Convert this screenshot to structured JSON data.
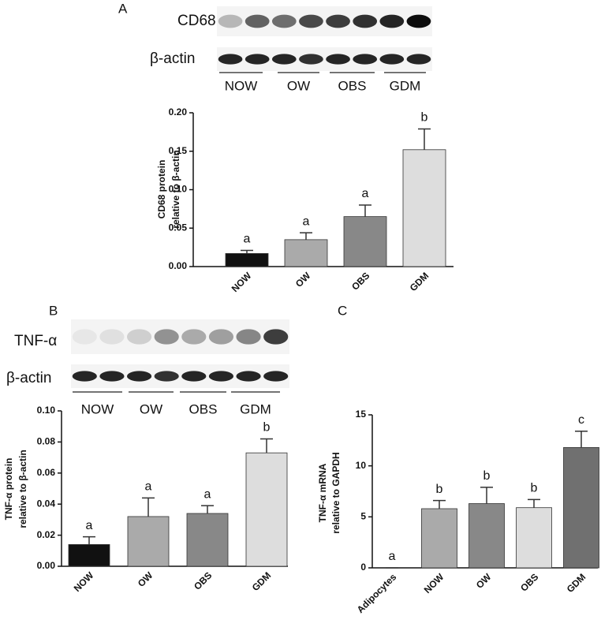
{
  "chart_data": [
    {
      "type": "bar",
      "panel": "A",
      "blot_labels": [
        "CD68",
        "β-actin"
      ],
      "ylabel": [
        "CD68 protein",
        "relative to β-actin"
      ],
      "categories": [
        "NOW",
        "OW",
        "OBS",
        "GDM"
      ],
      "values": [
        0.017,
        0.035,
        0.065,
        0.152
      ],
      "errors": [
        0.004,
        0.009,
        0.015,
        0.027
      ],
      "letters": [
        "a",
        "a",
        "a",
        "b"
      ],
      "colors": [
        "#111111",
        "#aaaaaa",
        "#888888",
        "#dddddd"
      ],
      "ylim": [
        0,
        0.2
      ],
      "yticks": [
        {
          "value": 0,
          "label": "0.00"
        },
        {
          "value": 0.05,
          "label": "0.05"
        },
        {
          "value": 0.1,
          "label": "0.10"
        },
        {
          "value": 0.15,
          "label": "0.15"
        },
        {
          "value": 0.2,
          "label": "0.20"
        }
      ]
    },
    {
      "type": "bar",
      "panel": "B",
      "blot_labels": [
        "TNF-α",
        "β-actin"
      ],
      "ylabel": [
        "TNF-α protein",
        "relative to β-actin"
      ],
      "categories": [
        "NOW",
        "OW",
        "OBS",
        "GDM"
      ],
      "values": [
        0.014,
        0.032,
        0.034,
        0.073
      ],
      "errors": [
        0.005,
        0.012,
        0.005,
        0.009
      ],
      "letters": [
        "a",
        "a",
        "a",
        "b"
      ],
      "colors": [
        "#111111",
        "#aaaaaa",
        "#888888",
        "#dddddd"
      ],
      "ylim": [
        0,
        0.1
      ],
      "yticks": [
        {
          "value": 0,
          "label": "0.00"
        },
        {
          "value": 0.02,
          "label": "0.02"
        },
        {
          "value": 0.04,
          "label": "0.04"
        },
        {
          "value": 0.06,
          "label": "0.06"
        },
        {
          "value": 0.08,
          "label": "0.08"
        },
        {
          "value": 0.1,
          "label": "0.10"
        }
      ]
    },
    {
      "type": "bar",
      "panel": "C",
      "ylabel": [
        "TNF-α mRNA",
        "relative to GAPDH"
      ],
      "categories": [
        "Adipocytes",
        "NOW",
        "OW",
        "OBS",
        "GDM"
      ],
      "values": [
        0,
        5.8,
        6.3,
        5.9,
        11.8
      ],
      "errors": [
        0,
        0.8,
        1.6,
        0.8,
        1.6
      ],
      "letters": [
        "a",
        "b",
        "b",
        "b",
        "c"
      ],
      "colors": [
        "#ffffff",
        "#aaaaaa",
        "#888888",
        "#dddddd",
        "#707070"
      ],
      "ylim": [
        0,
        15
      ],
      "yticks": [
        0,
        5,
        10,
        15
      ]
    }
  ]
}
